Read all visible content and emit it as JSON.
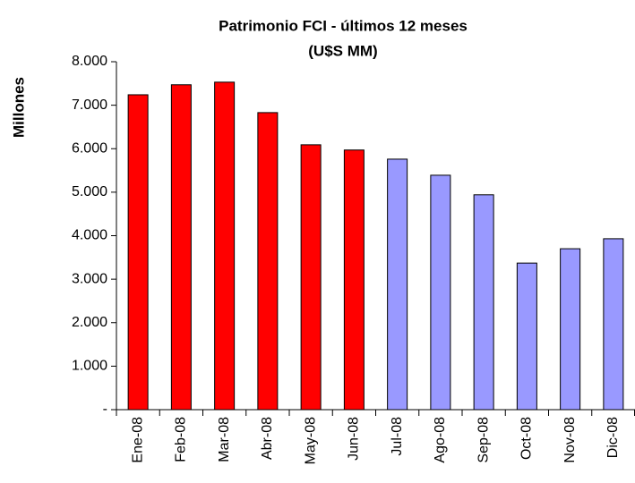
{
  "chart_data": {
    "type": "bar",
    "title": "Patrimonio FCI - últimos 12 meses",
    "subtitle": "(U$S MM)",
    "y_label": "Millones",
    "categories": [
      "Ene-08",
      "Feb-08",
      "Mar-08",
      "Abr-08",
      "May-08",
      "Jun-08",
      "Jul-08",
      "Ago-08",
      "Sep-08",
      "Oct-08",
      "Nov-08",
      "Dic-08"
    ],
    "values": [
      7240,
      7470,
      7530,
      6830,
      6090,
      5970,
      5760,
      5390,
      4940,
      3370,
      3700,
      3930
    ],
    "colors": [
      "#ff0000",
      "#ff0000",
      "#ff0000",
      "#ff0000",
      "#ff0000",
      "#ff0000",
      "#9999ff",
      "#9999ff",
      "#9999ff",
      "#9999ff",
      "#9999ff",
      "#9999ff"
    ],
    "ylim": [
      0,
      8000
    ],
    "yticks": [
      {
        "value": 0,
        "label": "-"
      },
      {
        "value": 1000,
        "label": "1.000"
      },
      {
        "value": 2000,
        "label": "2.000"
      },
      {
        "value": 3000,
        "label": "3.000"
      },
      {
        "value": 4000,
        "label": "4.000"
      },
      {
        "value": 5000,
        "label": "5.000"
      },
      {
        "value": 6000,
        "label": "6.000"
      },
      {
        "value": 7000,
        "label": "7.000"
      },
      {
        "value": 8000,
        "label": "8.000"
      }
    ],
    "grid": false
  }
}
